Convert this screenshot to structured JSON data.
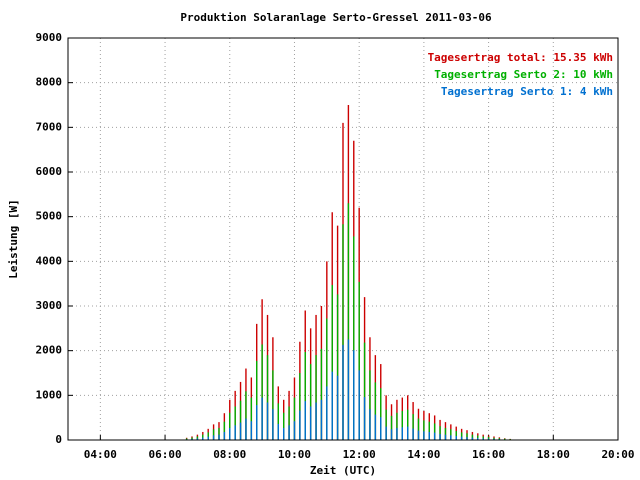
{
  "chart_data": {
    "type": "impulse",
    "title": "Produktion Solaranlage Serto-Gressel 2011-03-06",
    "x_label": "Zeit (UTC)",
    "y_label": "Leistung [W]",
    "xlim": [
      3,
      20
    ],
    "xticks": [
      {
        "value": 4,
        "label": "04:00"
      },
      {
        "value": 6,
        "label": "06:00"
      },
      {
        "value": 8,
        "label": "08:00"
      },
      {
        "value": 10,
        "label": "10:00"
      },
      {
        "value": 12,
        "label": "12:00"
      },
      {
        "value": 14,
        "label": "14:00"
      },
      {
        "value": 16,
        "label": "16:00"
      },
      {
        "value": 18,
        "label": "18:00"
      },
      {
        "value": 20,
        "label": "20:00"
      }
    ],
    "ylim": [
      0,
      9000
    ],
    "yticks": [
      0,
      1000,
      2000,
      3000,
      4000,
      5000,
      6000,
      7000,
      8000,
      9000
    ],
    "grid": true,
    "legend": "top-right",
    "x": [
      6.667,
      6.833,
      7,
      7.167,
      7.333,
      7.5,
      7.667,
      7.833,
      8,
      8.167,
      8.333,
      8.5,
      8.667,
      8.833,
      9,
      9.167,
      9.333,
      9.5,
      9.667,
      9.833,
      10,
      10.167,
      10.333,
      10.5,
      10.667,
      10.833,
      11,
      11.167,
      11.333,
      11.5,
      11.667,
      11.833,
      12,
      12.167,
      12.333,
      12.5,
      12.667,
      12.833,
      13,
      13.167,
      13.333,
      13.5,
      13.667,
      13.833,
      14,
      14.167,
      14.333,
      14.5,
      14.667,
      14.833,
      15,
      15.167,
      15.333,
      15.5,
      15.667,
      15.833,
      16,
      16.167,
      16.333,
      16.5,
      16.667
    ],
    "series": [
      {
        "name": "Tagesertrag total: 15.35 kWh",
        "color": "#cc0000",
        "values": [
          50,
          80,
          120,
          180,
          250,
          350,
          400,
          600,
          900,
          1100,
          1300,
          1600,
          1400,
          2600,
          3150,
          2800,
          2300,
          1200,
          900,
          1100,
          1400,
          2200,
          2900,
          2500,
          2800,
          3000,
          4000,
          5100,
          4800,
          7100,
          7500,
          6700,
          5200,
          3200,
          2300,
          1900,
          1700,
          1000,
          800,
          900,
          950,
          1000,
          850,
          700,
          650,
          600,
          550,
          450,
          400,
          350,
          300,
          250,
          220,
          180,
          150,
          120,
          100,
          80,
          60,
          40,
          25
        ]
      },
      {
        "name": "Tagesertrag Serto 2: 10 kWh",
        "color": "#00b000",
        "values": [
          35,
          55,
          80,
          120,
          170,
          240,
          270,
          410,
          610,
          750,
          880,
          1090,
          950,
          1770,
          2140,
          1900,
          1560,
          820,
          610,
          750,
          950,
          1500,
          1970,
          1700,
          1900,
          2040,
          2720,
          3470,
          3260,
          4830,
          5300,
          4560,
          3540,
          2180,
          1560,
          1290,
          1160,
          680,
          540,
          610,
          650,
          680,
          580,
          480,
          440,
          410,
          370,
          310,
          270,
          240,
          200,
          170,
          150,
          120,
          100,
          80,
          70,
          50,
          40,
          30,
          20
        ]
      },
      {
        "name": "Tagesertrag Serto 1: 4 kWh",
        "color": "#0070d0",
        "values": [
          15,
          25,
          35,
          55,
          75,
          105,
          120,
          180,
          270,
          330,
          390,
          480,
          420,
          780,
          950,
          840,
          690,
          360,
          270,
          330,
          420,
          660,
          870,
          750,
          840,
          900,
          1200,
          1530,
          1440,
          2130,
          2250,
          2010,
          1560,
          960,
          690,
          570,
          510,
          300,
          240,
          270,
          285,
          300,
          255,
          210,
          195,
          180,
          165,
          135,
          120,
          105,
          90,
          75,
          65,
          55,
          45,
          35,
          30,
          25,
          20,
          12,
          8
        ]
      }
    ]
  }
}
